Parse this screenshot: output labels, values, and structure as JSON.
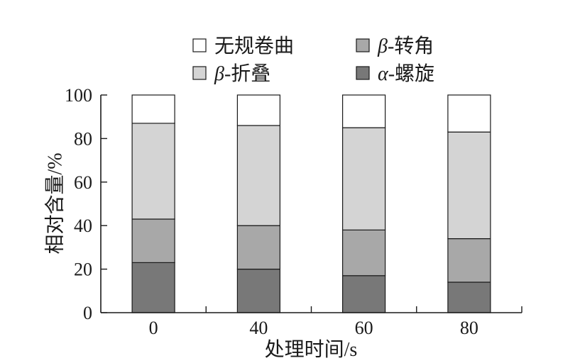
{
  "chart_data": {
    "type": "bar",
    "stacked": true,
    "categories": [
      "0",
      "40",
      "60",
      "80"
    ],
    "xlabel": "处理时间/s",
    "ylabel": "相对含量/%",
    "ylim": [
      0,
      100
    ],
    "yticks": [
      0,
      20,
      40,
      60,
      80,
      100
    ],
    "grid": false,
    "legend": "top",
    "series": [
      {
        "name": "α-螺旋",
        "values": [
          23,
          20,
          17,
          14
        ],
        "color": "#787878"
      },
      {
        "name": "β-转角",
        "values": [
          20,
          20,
          21,
          20
        ],
        "color": "#a8a8a8"
      },
      {
        "name": "β-折叠",
        "values": [
          44,
          46,
          47,
          49
        ],
        "color": "#d4d4d4"
      },
      {
        "name": "无规卷曲",
        "values": [
          13,
          14,
          15,
          17
        ],
        "color": "#ffffff"
      }
    ]
  }
}
